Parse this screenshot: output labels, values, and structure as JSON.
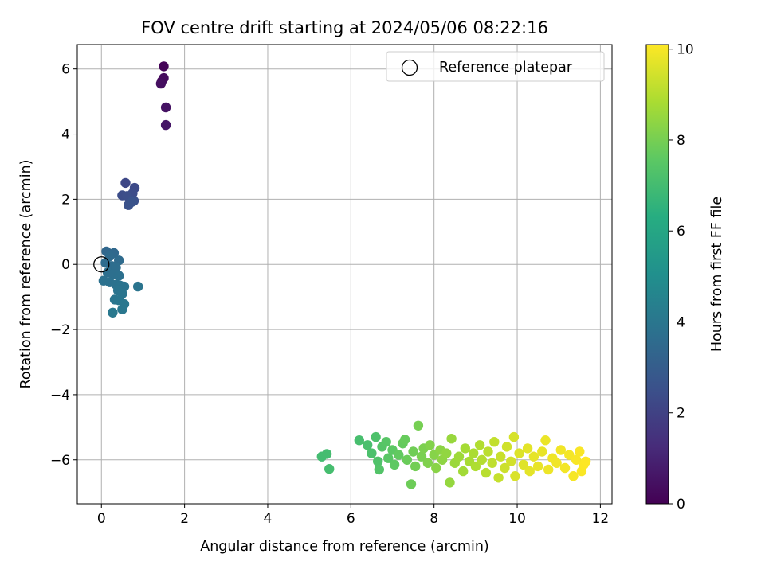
{
  "chart_data": {
    "type": "scatter",
    "title": "FOV centre drift starting at 2024/05/06 08:22:16",
    "xlabel": "Angular distance from reference (arcmin)",
    "ylabel": "Rotation from reference (arcmin)",
    "xlim": [
      -0.58,
      12.28
    ],
    "ylim": [
      -7.35,
      6.75
    ],
    "x_ticks": [
      0,
      2,
      4,
      6,
      8,
      10,
      12
    ],
    "y_ticks": [
      -6,
      -4,
      -2,
      0,
      2,
      4,
      6
    ],
    "grid": true,
    "legend": {
      "placement": "top-right",
      "entries": [
        "Reference platepar"
      ]
    },
    "reference_point": {
      "x": 0,
      "y": 0
    },
    "colorbar": {
      "label": "Hours from first FF file",
      "colormap": "viridis",
      "range": [
        0,
        10.1
      ],
      "ticks": [
        0,
        2,
        4,
        6,
        8,
        10
      ]
    },
    "series": [
      {
        "points": [
          {
            "x": 1.5,
            "y": 6.08,
            "c": 0.1
          },
          {
            "x": 1.45,
            "y": 5.62,
            "c": 0.2
          },
          {
            "x": 1.5,
            "y": 5.72,
            "c": 0.3
          },
          {
            "x": 1.43,
            "y": 5.55,
            "c": 0.4
          },
          {
            "x": 1.55,
            "y": 4.82,
            "c": 0.5
          },
          {
            "x": 1.55,
            "y": 4.28,
            "c": 0.6
          },
          {
            "x": 0.58,
            "y": 2.5,
            "c": 2.2
          },
          {
            "x": 0.8,
            "y": 2.35,
            "c": 2.3
          },
          {
            "x": 0.75,
            "y": 2.18,
            "c": 2.35
          },
          {
            "x": 0.5,
            "y": 2.12,
            "c": 2.4
          },
          {
            "x": 0.62,
            "y": 2.1,
            "c": 2.45
          },
          {
            "x": 0.78,
            "y": 1.95,
            "c": 2.5
          },
          {
            "x": 0.65,
            "y": 1.82,
            "c": 2.55
          },
          {
            "x": 0.73,
            "y": 1.92,
            "c": 2.6
          },
          {
            "x": 0.12,
            "y": 0.4,
            "c": 3.4
          },
          {
            "x": 0.3,
            "y": 0.35,
            "c": 3.45
          },
          {
            "x": 0.2,
            "y": 0.25,
            "c": 3.5
          },
          {
            "x": 0.42,
            "y": 0.12,
            "c": 3.55
          },
          {
            "x": 0.1,
            "y": 0.05,
            "c": 3.6
          },
          {
            "x": 0.25,
            "y": -0.05,
            "c": 3.62
          },
          {
            "x": 0.35,
            "y": -0.1,
            "c": 3.65
          },
          {
            "x": 0.15,
            "y": -0.25,
            "c": 3.7
          },
          {
            "x": 0.28,
            "y": -0.3,
            "c": 3.72
          },
          {
            "x": 0.42,
            "y": -0.35,
            "c": 3.75
          },
          {
            "x": 0.05,
            "y": -0.5,
            "c": 3.78
          },
          {
            "x": 0.2,
            "y": -0.55,
            "c": 3.8
          },
          {
            "x": 0.35,
            "y": -0.62,
            "c": 3.82
          },
          {
            "x": 0.45,
            "y": -0.65,
            "c": 3.85
          },
          {
            "x": 0.55,
            "y": -0.68,
            "c": 3.88
          },
          {
            "x": 0.88,
            "y": -0.68,
            "c": 3.9
          },
          {
            "x": 0.4,
            "y": -0.8,
            "c": 3.92
          },
          {
            "x": 0.5,
            "y": -0.9,
            "c": 3.95
          },
          {
            "x": 0.32,
            "y": -1.08,
            "c": 3.97
          },
          {
            "x": 0.42,
            "y": -1.1,
            "c": 4.0
          },
          {
            "x": 0.55,
            "y": -1.22,
            "c": 4.02
          },
          {
            "x": 0.5,
            "y": -1.38,
            "c": 4.05
          },
          {
            "x": 0.27,
            "y": -1.48,
            "c": 4.08
          },
          {
            "x": 5.3,
            "y": -5.9,
            "c": 7.0
          },
          {
            "x": 5.42,
            "y": -5.82,
            "c": 7.02
          },
          {
            "x": 5.48,
            "y": -6.28,
            "c": 7.05
          },
          {
            "x": 6.2,
            "y": -5.4,
            "c": 7.1
          },
          {
            "x": 6.4,
            "y": -5.55,
            "c": 7.15
          },
          {
            "x": 6.5,
            "y": -5.8,
            "c": 7.2
          },
          {
            "x": 6.6,
            "y": -5.3,
            "c": 7.25
          },
          {
            "x": 6.65,
            "y": -6.05,
            "c": 7.3
          },
          {
            "x": 6.68,
            "y": -6.3,
            "c": 7.35
          },
          {
            "x": 6.75,
            "y": -5.6,
            "c": 7.4
          },
          {
            "x": 6.85,
            "y": -5.45,
            "c": 7.45
          },
          {
            "x": 6.9,
            "y": -5.95,
            "c": 7.5
          },
          {
            "x": 7.0,
            "y": -5.7,
            "c": 7.55
          },
          {
            "x": 7.05,
            "y": -6.15,
            "c": 7.6
          },
          {
            "x": 7.15,
            "y": -5.85,
            "c": 7.65
          },
          {
            "x": 7.25,
            "y": -5.5,
            "c": 7.7
          },
          {
            "x": 7.3,
            "y": -5.38,
            "c": 7.75
          },
          {
            "x": 7.35,
            "y": -6.0,
            "c": 7.8
          },
          {
            "x": 7.45,
            "y": -6.75,
            "c": 7.85
          },
          {
            "x": 7.5,
            "y": -5.75,
            "c": 7.9
          },
          {
            "x": 7.55,
            "y": -6.2,
            "c": 7.95
          },
          {
            "x": 7.62,
            "y": -4.95,
            "c": 8.0
          },
          {
            "x": 7.7,
            "y": -5.9,
            "c": 8.05
          },
          {
            "x": 7.75,
            "y": -5.65,
            "c": 8.1
          },
          {
            "x": 7.85,
            "y": -6.1,
            "c": 8.15
          },
          {
            "x": 7.9,
            "y": -5.55,
            "c": 8.2
          },
          {
            "x": 8.0,
            "y": -5.85,
            "c": 8.25
          },
          {
            "x": 8.05,
            "y": -6.25,
            "c": 8.3
          },
          {
            "x": 8.15,
            "y": -5.7,
            "c": 8.35
          },
          {
            "x": 8.2,
            "y": -6.0,
            "c": 8.4
          },
          {
            "x": 8.3,
            "y": -5.8,
            "c": 8.45
          },
          {
            "x": 8.38,
            "y": -6.7,
            "c": 8.5
          },
          {
            "x": 8.42,
            "y": -5.35,
            "c": 8.55
          },
          {
            "x": 8.5,
            "y": -6.1,
            "c": 8.6
          },
          {
            "x": 8.6,
            "y": -5.9,
            "c": 8.65
          },
          {
            "x": 8.7,
            "y": -6.35,
            "c": 8.7
          },
          {
            "x": 8.75,
            "y": -5.65,
            "c": 8.75
          },
          {
            "x": 8.85,
            "y": -6.05,
            "c": 8.8
          },
          {
            "x": 8.95,
            "y": -5.8,
            "c": 8.85
          },
          {
            "x": 9.0,
            "y": -6.2,
            "c": 8.9
          },
          {
            "x": 9.1,
            "y": -5.55,
            "c": 8.95
          },
          {
            "x": 9.15,
            "y": -6.0,
            "c": 9.0
          },
          {
            "x": 9.25,
            "y": -6.4,
            "c": 9.05
          },
          {
            "x": 9.3,
            "y": -5.75,
            "c": 9.1
          },
          {
            "x": 9.4,
            "y": -6.1,
            "c": 9.15
          },
          {
            "x": 9.45,
            "y": -5.45,
            "c": 9.2
          },
          {
            "x": 9.55,
            "y": -6.55,
            "c": 9.25
          },
          {
            "x": 9.6,
            "y": -5.9,
            "c": 9.3
          },
          {
            "x": 9.7,
            "y": -6.25,
            "c": 9.35
          },
          {
            "x": 9.75,
            "y": -5.6,
            "c": 9.4
          },
          {
            "x": 9.85,
            "y": -6.05,
            "c": 9.45
          },
          {
            "x": 9.92,
            "y": -5.3,
            "c": 9.5
          },
          {
            "x": 9.95,
            "y": -6.5,
            "c": 9.55
          },
          {
            "x": 10.05,
            "y": -5.8,
            "c": 9.6
          },
          {
            "x": 10.15,
            "y": -6.15,
            "c": 9.65
          },
          {
            "x": 10.25,
            "y": -5.65,
            "c": 9.7
          },
          {
            "x": 10.3,
            "y": -6.35,
            "c": 9.72
          },
          {
            "x": 10.4,
            "y": -5.9,
            "c": 9.75
          },
          {
            "x": 10.5,
            "y": -6.2,
            "c": 9.78
          },
          {
            "x": 10.6,
            "y": -5.75,
            "c": 9.8
          },
          {
            "x": 10.68,
            "y": -5.4,
            "c": 9.82
          },
          {
            "x": 10.75,
            "y": -6.3,
            "c": 9.85
          },
          {
            "x": 10.85,
            "y": -5.95,
            "c": 9.88
          },
          {
            "x": 10.95,
            "y": -6.1,
            "c": 9.9
          },
          {
            "x": 11.05,
            "y": -5.7,
            "c": 9.92
          },
          {
            "x": 11.15,
            "y": -6.25,
            "c": 9.95
          },
          {
            "x": 11.25,
            "y": -5.85,
            "c": 9.97
          },
          {
            "x": 11.35,
            "y": -6.5,
            "c": 10.0
          },
          {
            "x": 11.42,
            "y": -6.0,
            "c": 10.02
          },
          {
            "x": 11.5,
            "y": -5.75,
            "c": 10.04
          },
          {
            "x": 11.55,
            "y": -6.35,
            "c": 10.06
          },
          {
            "x": 11.6,
            "y": -6.15,
            "c": 10.08
          },
          {
            "x": 11.65,
            "y": -6.05,
            "c": 10.1
          }
        ]
      }
    ]
  }
}
